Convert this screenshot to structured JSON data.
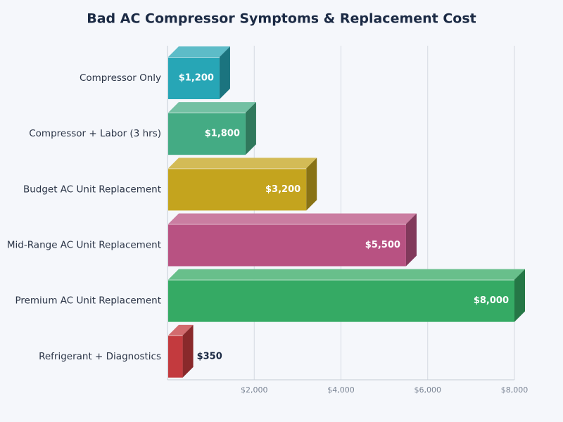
{
  "chart_data": {
    "type": "bar3d",
    "title": "Bad AC Compressor Symptoms & Replacement Cost",
    "categories": [
      "Compressor Only",
      "Compressor + Labor (3 hrs)",
      "Budget AC Unit Replacement",
      "Mid-Range AC Unit Replacement",
      "Premium AC Unit Replacement",
      "Refrigerant + Diagnostics"
    ],
    "values": [
      1200,
      1800,
      3200,
      5500,
      8000,
      350
    ],
    "value_labels": [
      "$1,200",
      "$1,800",
      "$3,200",
      "$5,500",
      "$8,000",
      "$350"
    ],
    "colors": [
      "#27a6b6",
      "#44ab84",
      "#c4a41e",
      "#b85282",
      "#35aa64",
      "#c33a3e"
    ],
    "xlim": [
      0,
      8000
    ],
    "xticks": [
      {
        "value": 2000,
        "label": "$2,000"
      },
      {
        "value": 4000,
        "label": "$4,000"
      },
      {
        "value": 6000,
        "label": "$6,000"
      },
      {
        "value": 8000,
        "label": "$8,000"
      }
    ],
    "grid": true
  }
}
